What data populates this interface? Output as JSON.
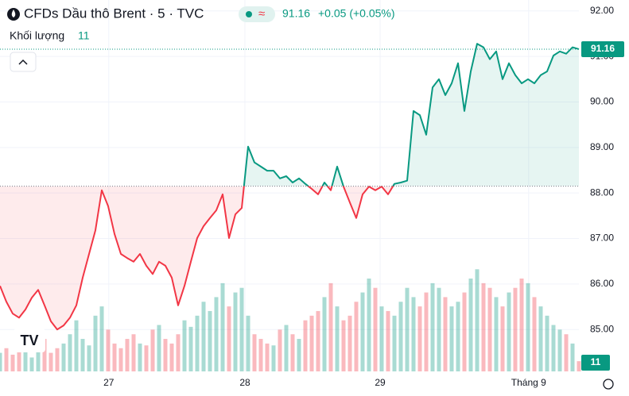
{
  "chart_data": {
    "type": "baseline",
    "title": "CFDs Dầu thô Brent · 5 · TVC",
    "change": "+0.05 (+0.05%)",
    "baseline": 88.15,
    "up_color": "#089981",
    "down_color": "#f23645",
    "xlim": [
      0,
      91
    ],
    "xticks": [
      {
        "value": 17.1,
        "label": "27"
      },
      {
        "value": 38.5,
        "label": "28"
      },
      {
        "value": 59.75,
        "label": "29"
      },
      {
        "value": 83.1,
        "label": "Tháng 9"
      }
    ],
    "ylim": [
      84.08,
      92.24
    ],
    "yticks": [
      {
        "value": 85,
        "label": "85.00"
      },
      {
        "value": 86,
        "label": "86.00"
      },
      {
        "value": 87,
        "label": "87.00"
      },
      {
        "value": 88,
        "label": "88.00"
      },
      {
        "value": 89,
        "label": "89.00"
      },
      {
        "value": 90,
        "label": "90.00"
      },
      {
        "value": 91,
        "label": "91.00"
      },
      {
        "value": 92,
        "label": "92.00"
      }
    ],
    "y2lim": [
      0,
      400
    ],
    "grid": true,
    "series": [
      {
        "values": [
          85.96,
          85.61,
          85.35,
          85.26,
          85.44,
          85.7,
          85.87,
          85.53,
          85.18,
          85.0,
          85.09,
          85.26,
          85.53,
          86.14,
          86.66,
          87.18,
          88.06,
          87.71,
          87.1,
          86.66,
          86.57,
          86.49,
          86.66,
          86.4,
          86.22,
          86.49,
          86.4,
          86.14,
          85.53,
          85.96,
          86.49,
          87.01,
          87.27,
          87.45,
          87.62,
          87.97,
          87.01,
          87.53,
          87.67,
          89.02,
          88.67,
          88.58,
          88.49,
          88.49,
          88.32,
          88.37,
          88.23,
          88.32,
          88.2,
          88.09,
          87.97,
          88.23,
          88.06,
          88.58,
          88.14,
          87.79,
          87.45,
          87.97,
          88.14,
          88.06,
          88.14,
          87.97,
          88.2,
          88.23,
          88.27,
          89.8,
          89.71,
          89.28,
          90.32,
          90.5,
          90.15,
          90.41,
          90.85,
          89.8,
          90.67,
          91.28,
          91.2,
          90.94,
          91.11,
          90.5,
          90.85,
          90.59,
          90.41,
          90.5,
          90.41,
          90.59,
          90.67,
          91.02,
          91.11,
          91.06,
          91.2,
          91.16
        ]
      },
      {
        "name": "Khối lượng",
        "axis": "y2",
        "values": [
          20,
          25,
          18,
          30,
          22,
          15,
          28,
          35,
          20,
          25,
          30,
          40,
          55,
          35,
          28,
          60,
          70,
          45,
          30,
          25,
          35,
          40,
          30,
          28,
          45,
          50,
          35,
          30,
          40,
          55,
          48,
          60,
          75,
          65,
          80,
          95,
          70,
          85,
          90,
          60,
          40,
          35,
          30,
          28,
          45,
          50,
          40,
          35,
          55,
          60,
          65,
          80,
          95,
          70,
          55,
          60,
          75,
          85,
          100,
          90,
          70,
          65,
          60,
          75,
          90,
          80,
          70,
          85,
          95,
          90,
          80,
          70,
          75,
          85,
          100,
          110,
          95,
          90,
          80,
          70,
          85,
          90,
          100,
          95,
          80,
          70,
          60,
          50,
          45,
          40,
          30,
          11
        ]
      }
    ]
  }
}
